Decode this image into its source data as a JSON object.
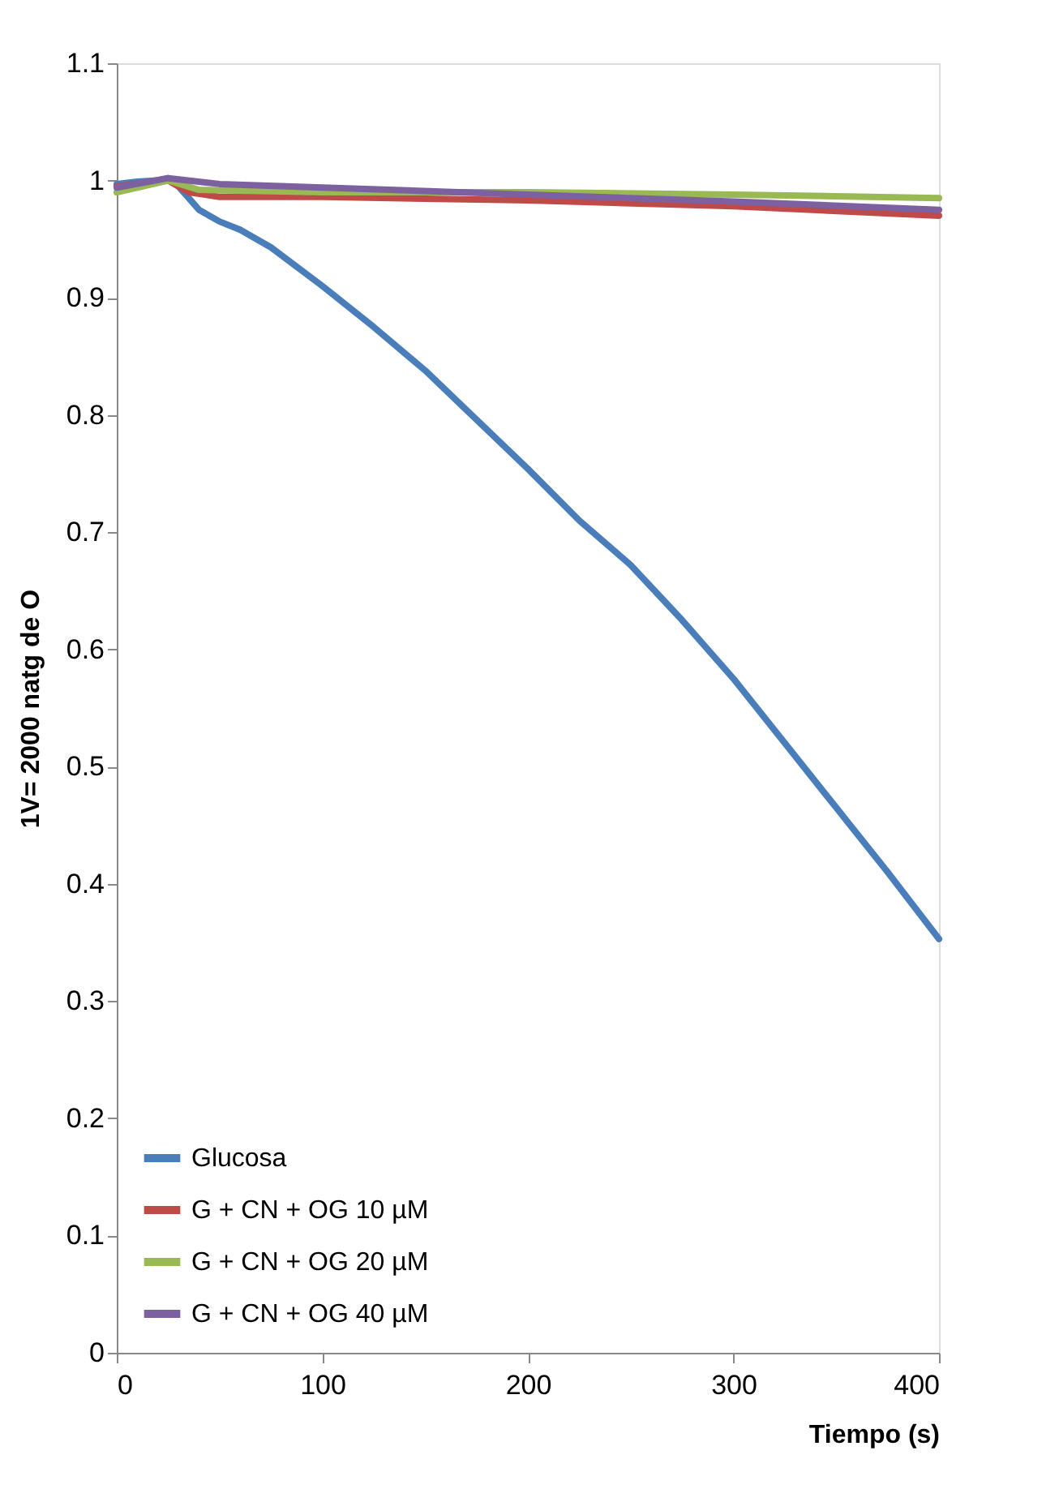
{
  "chart_data": {
    "type": "line",
    "xlabel": "Tiempo (s)",
    "ylabel": "1V= 2000 natg de O",
    "xlim": [
      0,
      400
    ],
    "xticks": [
      0,
      100,
      200,
      300,
      400
    ],
    "ylim": [
      0,
      1.1
    ],
    "yticks": [
      0,
      0.1,
      0.2,
      0.3,
      0.4,
      0.5,
      0.6,
      0.7,
      0.8,
      0.9,
      1,
      1.1
    ],
    "grid": false,
    "legend": "bottom left",
    "marker": "none",
    "line_style": "solid",
    "series": [
      {
        "name": "Glucosa",
        "color": "#4a7ebb",
        "x": [
          0,
          10,
          20,
          25,
          30,
          35,
          40,
          50,
          60,
          75,
          100,
          125,
          150,
          175,
          200,
          225,
          250,
          275,
          300,
          325,
          350,
          375,
          400
        ],
        "values": [
          0.997,
          0.999,
          1.0,
          1.002,
          0.995,
          0.985,
          0.975,
          0.965,
          0.958,
          0.943,
          0.91,
          0.875,
          0.838,
          0.796,
          0.754,
          0.71,
          0.672,
          0.625,
          0.575,
          0.52,
          0.465,
          0.41,
          0.353
        ]
      },
      {
        "name": "G + CN + OG 10 µM",
        "color": "#be4b48",
        "x": [
          0,
          25,
          35,
          50,
          100,
          200,
          300,
          400
        ],
        "values": [
          0.995,
          1.0,
          0.99,
          0.986,
          0.986,
          0.983,
          0.978,
          0.97
        ]
      },
      {
        "name": "G + CN + OG 20 µM",
        "color": "#98b954",
        "x": [
          0,
          25,
          40,
          100,
          200,
          300,
          400
        ],
        "values": [
          0.99,
          1.0,
          0.992,
          0.99,
          0.99,
          0.988,
          0.985
        ]
      },
      {
        "name": "G + CN + OG 40 µM",
        "color": "#7d60a0",
        "x": [
          0,
          25,
          50,
          100,
          200,
          300,
          400
        ],
        "values": [
          0.994,
          1.002,
          0.997,
          0.994,
          0.988,
          0.982,
          0.975
        ]
      }
    ]
  }
}
